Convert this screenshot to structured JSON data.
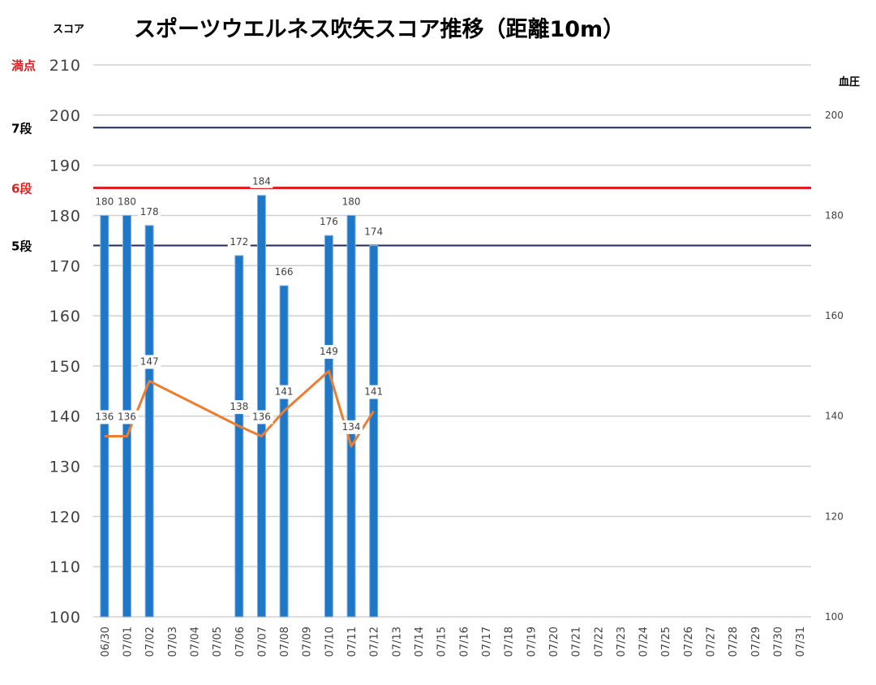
{
  "chart_data": {
    "type": "bar",
    "title": "スポーツウエルネス吹矢スコア推移（距離10m）",
    "ylabel_left": "スコア",
    "ylabel_right": "血圧",
    "ylim_left": [
      100,
      210
    ],
    "yticks_left": [
      100,
      110,
      120,
      130,
      140,
      150,
      160,
      170,
      180,
      190,
      200,
      210
    ],
    "ylim_right": [
      100,
      210
    ],
    "yticks_right": [
      100,
      120,
      140,
      160,
      180,
      200
    ],
    "grid": true,
    "categories": [
      "06/30",
      "07/01",
      "07/02",
      "07/03",
      "07/04",
      "07/05",
      "07/06",
      "07/07",
      "07/08",
      "07/09",
      "07/10",
      "07/11",
      "07/12",
      "07/13",
      "07/14",
      "07/15",
      "07/16",
      "07/17",
      "07/18",
      "07/19",
      "07/20",
      "07/21",
      "07/22",
      "07/23",
      "07/24",
      "07/25",
      "07/26",
      "07/27",
      "07/28",
      "07/29",
      "07/30",
      "07/31"
    ],
    "series": [
      {
        "type": "bar",
        "color": "#1f77c8",
        "values": [
          180,
          180,
          178,
          null,
          null,
          null,
          172,
          184,
          166,
          null,
          176,
          180,
          174,
          null,
          null,
          null,
          null,
          null,
          null,
          null,
          null,
          null,
          null,
          null,
          null,
          null,
          null,
          null,
          null,
          null,
          null,
          null
        ]
      },
      {
        "type": "line",
        "axis": "right",
        "color": "#ed7d31",
        "values": [
          136,
          136,
          147,
          null,
          null,
          null,
          138,
          136,
          141,
          null,
          149,
          134,
          141,
          null,
          null,
          null,
          null,
          null,
          null,
          null,
          null,
          null,
          null,
          null,
          null,
          null,
          null,
          null,
          null,
          null,
          null,
          null
        ]
      }
    ],
    "reference_lines": [
      {
        "label": "満点",
        "value": 210,
        "color": "#e02020",
        "line": false
      },
      {
        "label": "7段",
        "value": 197.5,
        "color": "#000000",
        "line": true,
        "line_color": "#1f2a5c"
      },
      {
        "label": "6段",
        "value": 185.5,
        "color": "#e02020",
        "line": true,
        "line_color": "#e02020"
      },
      {
        "label": "5段",
        "value": 174,
        "color": "#000000",
        "line": true,
        "line_color": "#1f2a5c"
      }
    ]
  }
}
